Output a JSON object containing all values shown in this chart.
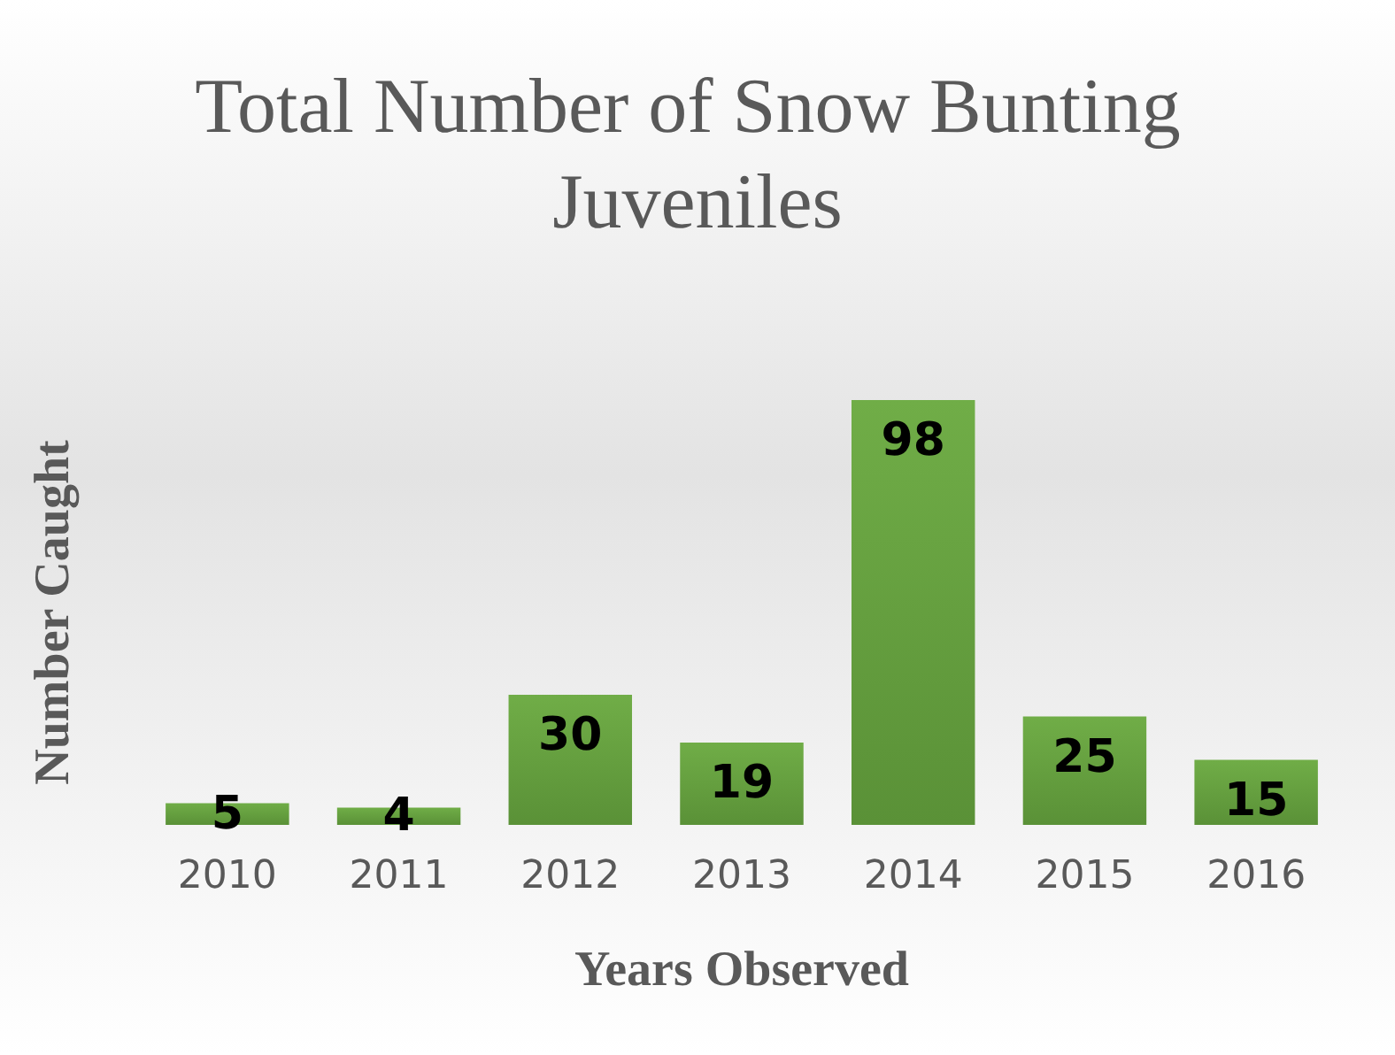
{
  "chart_data": {
    "type": "bar",
    "title": "Total Number of Snow Bunting Juveniles",
    "xlabel": "Years Observed",
    "ylabel": "Number Caught",
    "categories": [
      "2010",
      "2011",
      "2012",
      "2013",
      "2014",
      "2015",
      "2016"
    ],
    "values": [
      5,
      4,
      30,
      19,
      98,
      25,
      15
    ],
    "color": "#70ad47",
    "data_labels": true
  }
}
